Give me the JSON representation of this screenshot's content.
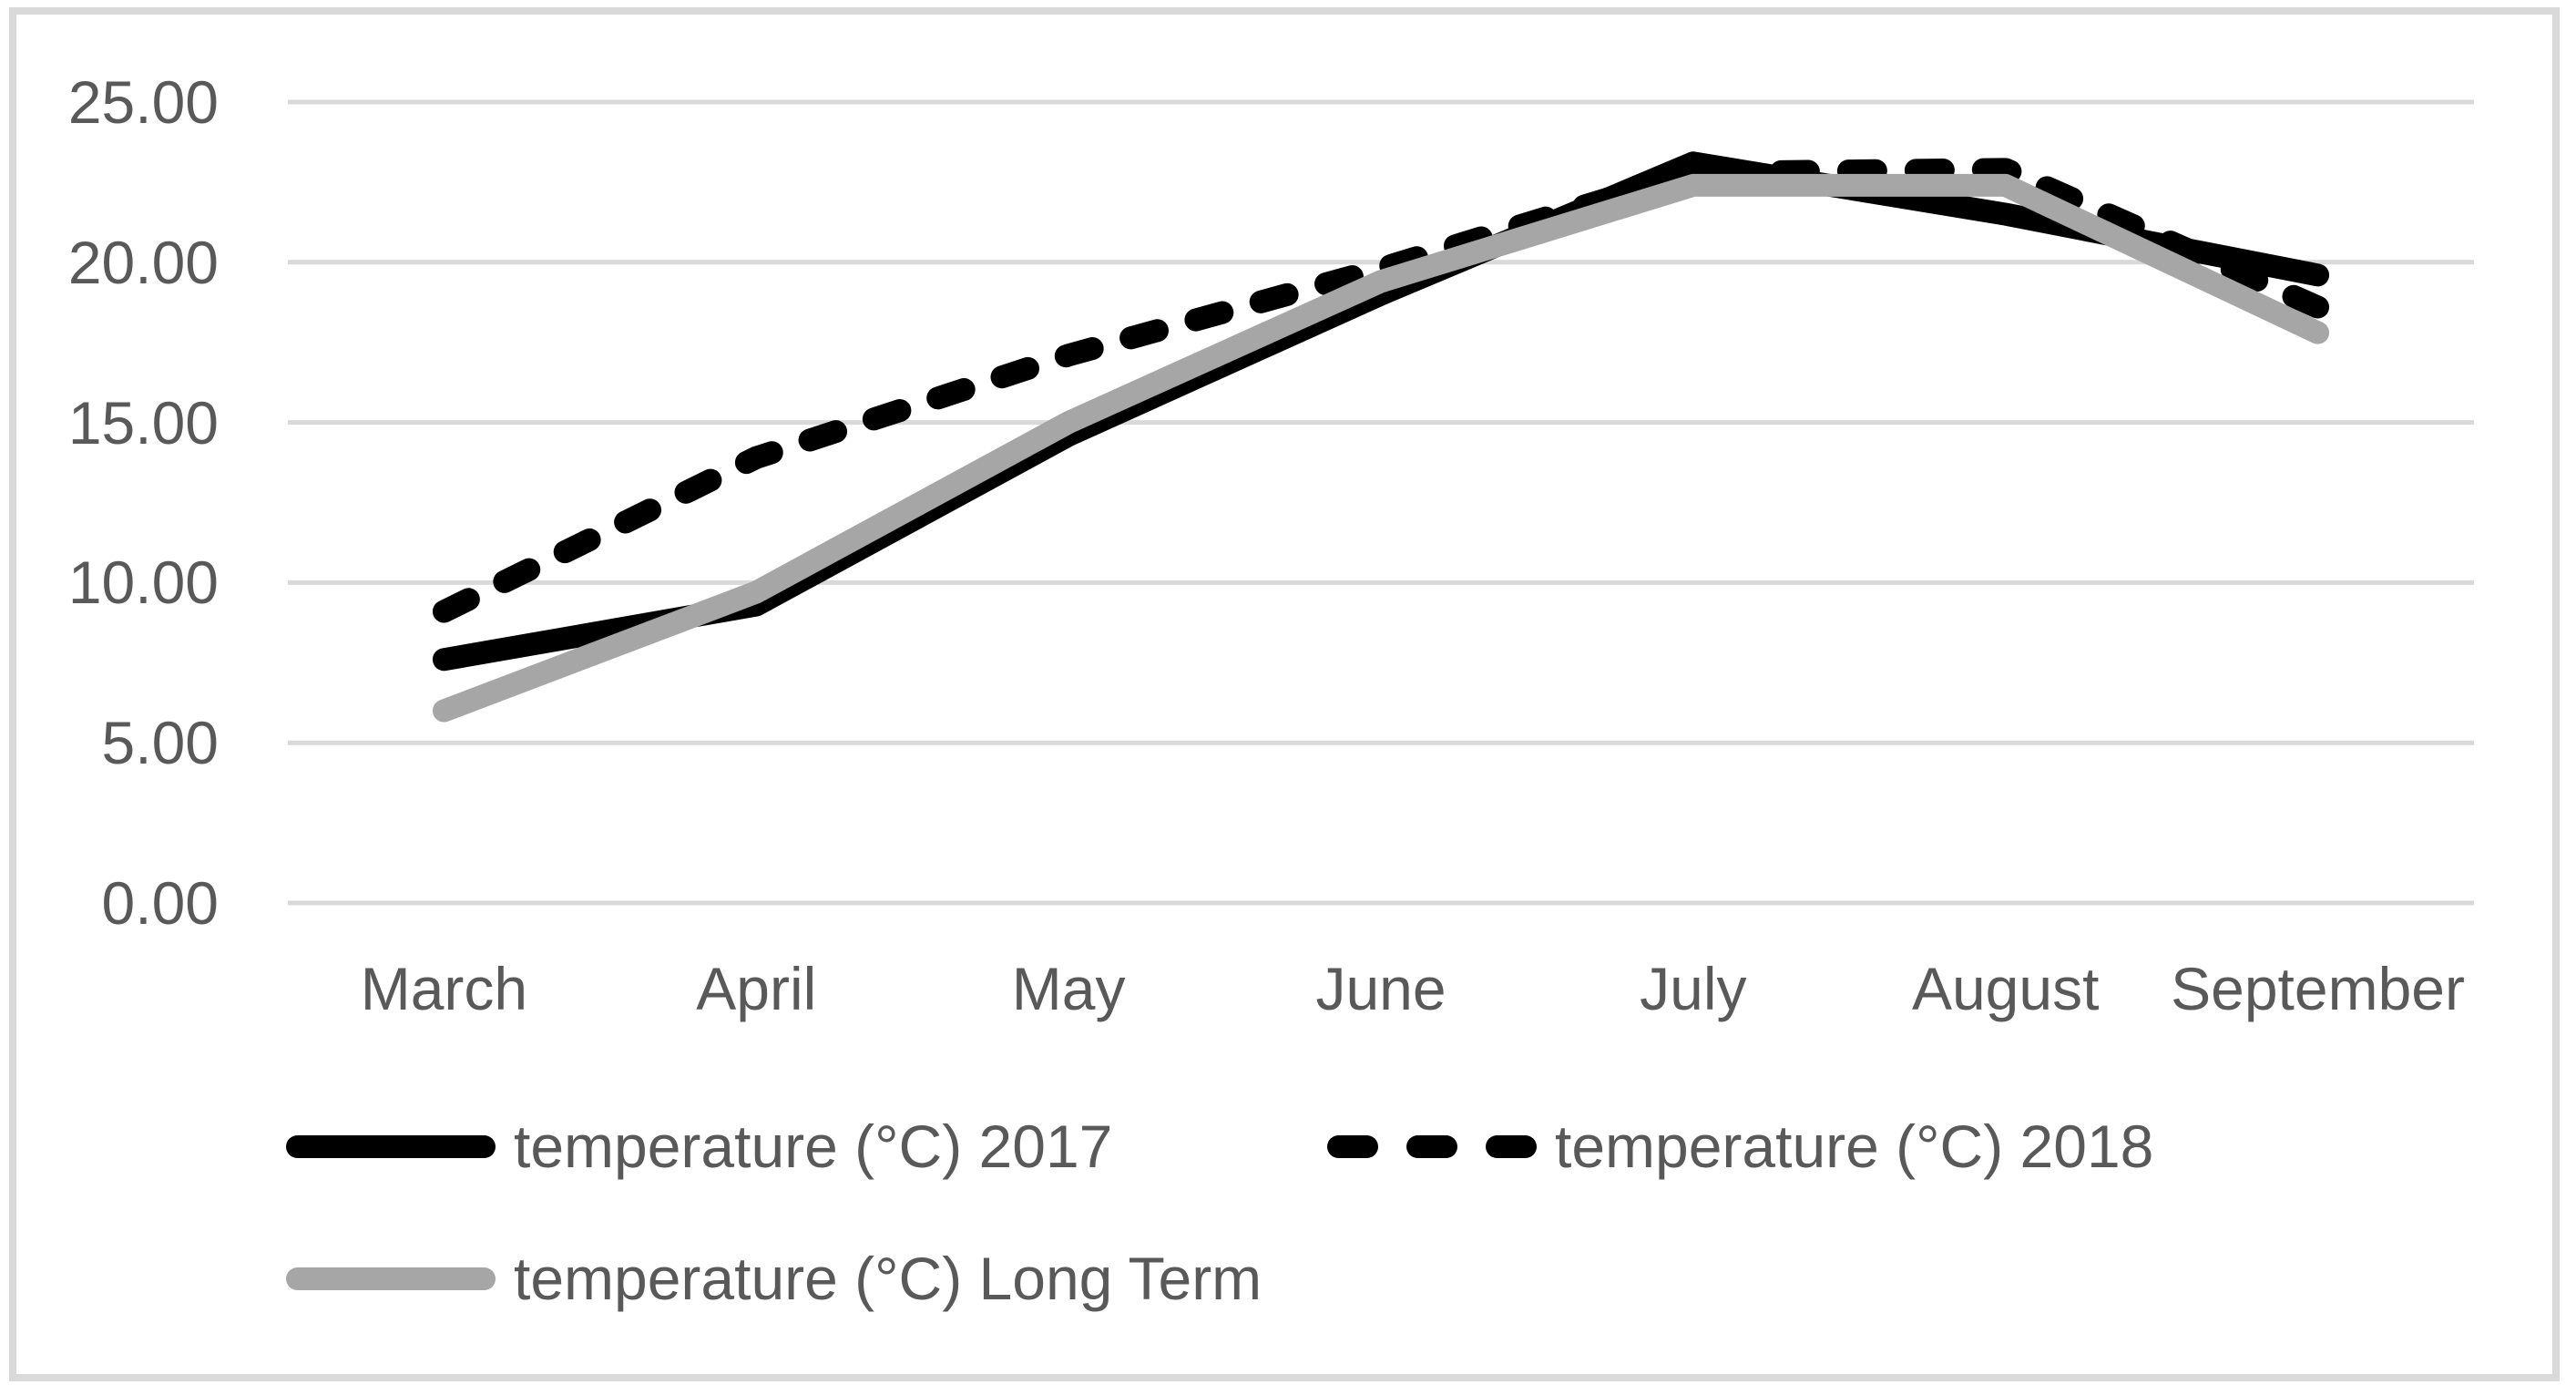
{
  "chart_data": {
    "type": "line",
    "title": "",
    "categories": [
      "March",
      "April",
      "May",
      "June",
      "July",
      "August",
      "September"
    ],
    "series": [
      {
        "name": "temperature (°C) 2017",
        "color": "#000000",
        "line_style": "solid",
        "values": [
          7.6,
          9.3,
          14.6,
          19.0,
          23.1,
          21.5,
          19.6
        ]
      },
      {
        "name": "temperature (°C) 2018",
        "color": "#000000",
        "line_style": "dashed",
        "values": [
          9.1,
          13.9,
          17.1,
          19.8,
          22.8,
          22.9,
          18.6
        ]
      },
      {
        "name": "temperature (°C) Long Term",
        "color": "#a6a6a6",
        "line_style": "solid",
        "values": [
          6.0,
          9.7,
          15.0,
          19.4,
          22.4,
          22.4,
          17.8
        ]
      }
    ],
    "xlabel": "",
    "ylabel": "",
    "ylim": [
      0,
      25
    ],
    "ytick_step": 5,
    "y_tick_labels": [
      "0.00",
      "5.00",
      "10.00",
      "15.00",
      "20.00",
      "25.00"
    ],
    "grid": "horizontal",
    "legend_position": "bottom"
  },
  "colors": {
    "background": "#ffffff",
    "gridline": "#d9d9d9",
    "chart_border": "#d9d9d9",
    "axis_text": "#595959"
  }
}
